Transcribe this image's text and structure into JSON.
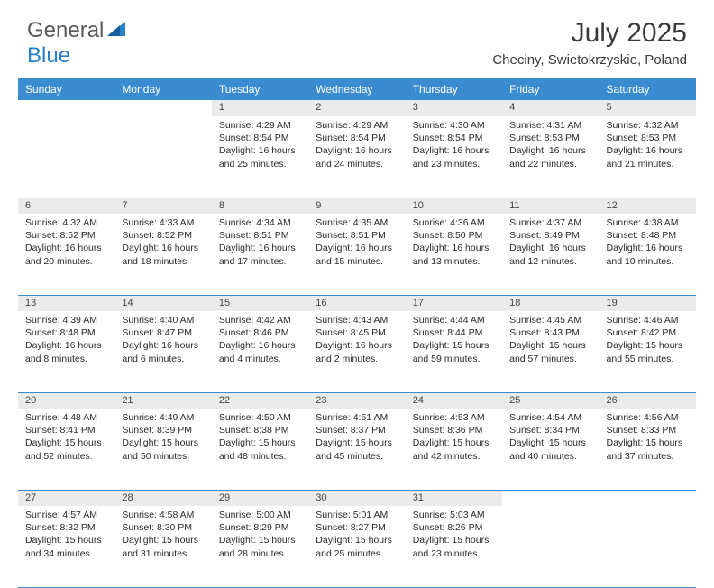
{
  "brand": {
    "part1": "General",
    "part2": "Blue"
  },
  "title": "July 2025",
  "location": "Checiny, Swietokrzyskie, Poland",
  "colors": {
    "header_bg": "#3b8bd0",
    "header_text": "#ffffff",
    "daynum_bg": "#ebebeb",
    "border": "#3b8bd0",
    "brand_gray": "#5a5a5a",
    "brand_blue": "#2a7fc9"
  },
  "day_headers": [
    "Sunday",
    "Monday",
    "Tuesday",
    "Wednesday",
    "Thursday",
    "Friday",
    "Saturday"
  ],
  "weeks": [
    [
      null,
      null,
      {
        "n": "1",
        "sr": "4:29 AM",
        "ss": "8:54 PM",
        "dl": "16 hours and 25 minutes."
      },
      {
        "n": "2",
        "sr": "4:29 AM",
        "ss": "8:54 PM",
        "dl": "16 hours and 24 minutes."
      },
      {
        "n": "3",
        "sr": "4:30 AM",
        "ss": "8:54 PM",
        "dl": "16 hours and 23 minutes."
      },
      {
        "n": "4",
        "sr": "4:31 AM",
        "ss": "8:53 PM",
        "dl": "16 hours and 22 minutes."
      },
      {
        "n": "5",
        "sr": "4:32 AM",
        "ss": "8:53 PM",
        "dl": "16 hours and 21 minutes."
      }
    ],
    [
      {
        "n": "6",
        "sr": "4:32 AM",
        "ss": "8:52 PM",
        "dl": "16 hours and 20 minutes."
      },
      {
        "n": "7",
        "sr": "4:33 AM",
        "ss": "8:52 PM",
        "dl": "16 hours and 18 minutes."
      },
      {
        "n": "8",
        "sr": "4:34 AM",
        "ss": "8:51 PM",
        "dl": "16 hours and 17 minutes."
      },
      {
        "n": "9",
        "sr": "4:35 AM",
        "ss": "8:51 PM",
        "dl": "16 hours and 15 minutes."
      },
      {
        "n": "10",
        "sr": "4:36 AM",
        "ss": "8:50 PM",
        "dl": "16 hours and 13 minutes."
      },
      {
        "n": "11",
        "sr": "4:37 AM",
        "ss": "8:49 PM",
        "dl": "16 hours and 12 minutes."
      },
      {
        "n": "12",
        "sr": "4:38 AM",
        "ss": "8:48 PM",
        "dl": "16 hours and 10 minutes."
      }
    ],
    [
      {
        "n": "13",
        "sr": "4:39 AM",
        "ss": "8:48 PM",
        "dl": "16 hours and 8 minutes."
      },
      {
        "n": "14",
        "sr": "4:40 AM",
        "ss": "8:47 PM",
        "dl": "16 hours and 6 minutes."
      },
      {
        "n": "15",
        "sr": "4:42 AM",
        "ss": "8:46 PM",
        "dl": "16 hours and 4 minutes."
      },
      {
        "n": "16",
        "sr": "4:43 AM",
        "ss": "8:45 PM",
        "dl": "16 hours and 2 minutes."
      },
      {
        "n": "17",
        "sr": "4:44 AM",
        "ss": "8:44 PM",
        "dl": "15 hours and 59 minutes."
      },
      {
        "n": "18",
        "sr": "4:45 AM",
        "ss": "8:43 PM",
        "dl": "15 hours and 57 minutes."
      },
      {
        "n": "19",
        "sr": "4:46 AM",
        "ss": "8:42 PM",
        "dl": "15 hours and 55 minutes."
      }
    ],
    [
      {
        "n": "20",
        "sr": "4:48 AM",
        "ss": "8:41 PM",
        "dl": "15 hours and 52 minutes."
      },
      {
        "n": "21",
        "sr": "4:49 AM",
        "ss": "8:39 PM",
        "dl": "15 hours and 50 minutes."
      },
      {
        "n": "22",
        "sr": "4:50 AM",
        "ss": "8:38 PM",
        "dl": "15 hours and 48 minutes."
      },
      {
        "n": "23",
        "sr": "4:51 AM",
        "ss": "8:37 PM",
        "dl": "15 hours and 45 minutes."
      },
      {
        "n": "24",
        "sr": "4:53 AM",
        "ss": "8:36 PM",
        "dl": "15 hours and 42 minutes."
      },
      {
        "n": "25",
        "sr": "4:54 AM",
        "ss": "8:34 PM",
        "dl": "15 hours and 40 minutes."
      },
      {
        "n": "26",
        "sr": "4:56 AM",
        "ss": "8:33 PM",
        "dl": "15 hours and 37 minutes."
      }
    ],
    [
      {
        "n": "27",
        "sr": "4:57 AM",
        "ss": "8:32 PM",
        "dl": "15 hours and 34 minutes."
      },
      {
        "n": "28",
        "sr": "4:58 AM",
        "ss": "8:30 PM",
        "dl": "15 hours and 31 minutes."
      },
      {
        "n": "29",
        "sr": "5:00 AM",
        "ss": "8:29 PM",
        "dl": "15 hours and 28 minutes."
      },
      {
        "n": "30",
        "sr": "5:01 AM",
        "ss": "8:27 PM",
        "dl": "15 hours and 25 minutes."
      },
      {
        "n": "31",
        "sr": "5:03 AM",
        "ss": "8:26 PM",
        "dl": "15 hours and 23 minutes."
      },
      null,
      null
    ]
  ],
  "labels": {
    "sunrise": "Sunrise:",
    "sunset": "Sunset:",
    "daylight": "Daylight:"
  }
}
